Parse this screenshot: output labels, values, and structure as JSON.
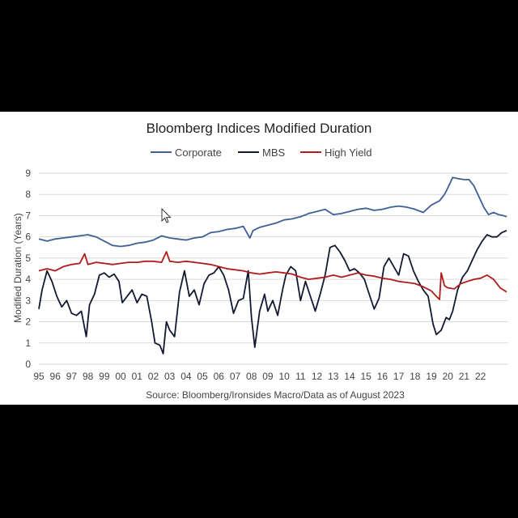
{
  "chart_data": {
    "type": "line",
    "title": "Bloomberg Indices Modified Duration",
    "ylabel": "Modified Duration (Years)",
    "xlabel": "",
    "source": "Source: Bloomberg/Ironsides Macro/Data as of August 2023",
    "ylim": [
      0,
      9
    ],
    "yticks": [
      0,
      1,
      2,
      3,
      4,
      5,
      6,
      7,
      8,
      9
    ],
    "xlim": [
      1995.0,
      2023.7
    ],
    "xtick_labels": [
      "95",
      "96",
      "97",
      "98",
      "99",
      "00",
      "01",
      "02",
      "03",
      "04",
      "05",
      "06",
      "07",
      "08",
      "09",
      "10",
      "11",
      "12",
      "13",
      "14",
      "15",
      "16",
      "17",
      "18",
      "19",
      "20",
      "21",
      "22"
    ],
    "grid": "horizontal",
    "legend_position": "top",
    "series": [
      {
        "name": "Corporate",
        "color": "#3f5f95",
        "points": [
          [
            1995.0,
            5.9
          ],
          [
            1995.5,
            5.8
          ],
          [
            1996.0,
            5.9
          ],
          [
            1996.5,
            5.95
          ],
          [
            1997.0,
            6.0
          ],
          [
            1997.5,
            6.05
          ],
          [
            1998.0,
            6.1
          ],
          [
            1998.5,
            6.0
          ],
          [
            1999.0,
            5.8
          ],
          [
            1999.5,
            5.6
          ],
          [
            2000.0,
            5.55
          ],
          [
            2000.5,
            5.6
          ],
          [
            2001.0,
            5.7
          ],
          [
            2001.5,
            5.75
          ],
          [
            2002.0,
            5.85
          ],
          [
            2002.5,
            6.05
          ],
          [
            2003.0,
            5.95
          ],
          [
            2003.5,
            5.9
          ],
          [
            2004.0,
            5.85
          ],
          [
            2004.5,
            5.95
          ],
          [
            2005.0,
            6.0
          ],
          [
            2005.5,
            6.2
          ],
          [
            2006.0,
            6.25
          ],
          [
            2006.5,
            6.35
          ],
          [
            2007.0,
            6.4
          ],
          [
            2007.5,
            6.5
          ],
          [
            2007.9,
            5.95
          ],
          [
            2008.1,
            6.3
          ],
          [
            2008.5,
            6.45
          ],
          [
            2009.0,
            6.55
          ],
          [
            2009.5,
            6.65
          ],
          [
            2010.0,
            6.8
          ],
          [
            2010.5,
            6.85
          ],
          [
            2011.0,
            6.95
          ],
          [
            2011.5,
            7.1
          ],
          [
            2012.0,
            7.2
          ],
          [
            2012.5,
            7.3
          ],
          [
            2013.0,
            7.05
          ],
          [
            2013.5,
            7.1
          ],
          [
            2014.0,
            7.2
          ],
          [
            2014.5,
            7.3
          ],
          [
            2015.0,
            7.35
          ],
          [
            2015.5,
            7.25
          ],
          [
            2016.0,
            7.3
          ],
          [
            2016.5,
            7.4
          ],
          [
            2017.0,
            7.45
          ],
          [
            2017.5,
            7.4
          ],
          [
            2018.0,
            7.3
          ],
          [
            2018.5,
            7.15
          ],
          [
            2019.0,
            7.5
          ],
          [
            2019.5,
            7.7
          ],
          [
            2019.8,
            8.0
          ],
          [
            2020.0,
            8.3
          ],
          [
            2020.3,
            8.8
          ],
          [
            2020.6,
            8.75
          ],
          [
            2021.0,
            8.7
          ],
          [
            2021.3,
            8.7
          ],
          [
            2021.6,
            8.4
          ],
          [
            2021.9,
            7.9
          ],
          [
            2022.2,
            7.4
          ],
          [
            2022.5,
            7.05
          ],
          [
            2022.8,
            7.15
          ],
          [
            2023.1,
            7.05
          ],
          [
            2023.4,
            7.0
          ],
          [
            2023.6,
            6.95
          ]
        ]
      },
      {
        "name": "MBS",
        "color": "#111a30",
        "points": [
          [
            1995.0,
            2.6
          ],
          [
            1995.2,
            3.5
          ],
          [
            1995.5,
            4.4
          ],
          [
            1995.8,
            3.9
          ],
          [
            1996.1,
            3.2
          ],
          [
            1996.4,
            2.7
          ],
          [
            1996.7,
            3.0
          ],
          [
            1997.0,
            2.4
          ],
          [
            1997.3,
            2.3
          ],
          [
            1997.6,
            2.5
          ],
          [
            1997.9,
            1.3
          ],
          [
            1998.1,
            2.8
          ],
          [
            1998.4,
            3.3
          ],
          [
            1998.7,
            4.2
          ],
          [
            1999.0,
            4.3
          ],
          [
            1999.3,
            4.1
          ],
          [
            1999.6,
            4.25
          ],
          [
            1999.9,
            3.9
          ],
          [
            2000.1,
            2.9
          ],
          [
            2000.4,
            3.2
          ],
          [
            2000.7,
            3.5
          ],
          [
            2001.0,
            2.9
          ],
          [
            2001.3,
            3.3
          ],
          [
            2001.6,
            3.2
          ],
          [
            2001.9,
            2.0
          ],
          [
            2002.1,
            1.0
          ],
          [
            2002.4,
            0.9
          ],
          [
            2002.6,
            0.5
          ],
          [
            2002.8,
            2.0
          ],
          [
            2003.0,
            1.6
          ],
          [
            2003.3,
            1.3
          ],
          [
            2003.6,
            3.4
          ],
          [
            2003.9,
            4.4
          ],
          [
            2004.2,
            3.2
          ],
          [
            2004.5,
            3.5
          ],
          [
            2004.8,
            2.8
          ],
          [
            2005.1,
            3.8
          ],
          [
            2005.4,
            4.2
          ],
          [
            2005.7,
            4.3
          ],
          [
            2006.0,
            4.6
          ],
          [
            2006.3,
            4.2
          ],
          [
            2006.6,
            3.5
          ],
          [
            2006.9,
            2.4
          ],
          [
            2007.2,
            3.0
          ],
          [
            2007.5,
            3.1
          ],
          [
            2007.8,
            4.4
          ],
          [
            2008.0,
            2.2
          ],
          [
            2008.2,
            0.8
          ],
          [
            2008.5,
            2.5
          ],
          [
            2008.8,
            3.3
          ],
          [
            2009.0,
            2.5
          ],
          [
            2009.3,
            3.0
          ],
          [
            2009.6,
            2.3
          ],
          [
            2009.9,
            3.5
          ],
          [
            2010.1,
            4.2
          ],
          [
            2010.4,
            4.6
          ],
          [
            2010.7,
            4.4
          ],
          [
            2011.0,
            3.0
          ],
          [
            2011.3,
            3.9
          ],
          [
            2011.6,
            3.2
          ],
          [
            2011.9,
            2.5
          ],
          [
            2012.2,
            3.3
          ],
          [
            2012.5,
            4.2
          ],
          [
            2012.8,
            5.5
          ],
          [
            2013.1,
            5.6
          ],
          [
            2013.4,
            5.3
          ],
          [
            2013.7,
            4.9
          ],
          [
            2014.0,
            4.4
          ],
          [
            2014.3,
            4.5
          ],
          [
            2014.6,
            4.3
          ],
          [
            2014.9,
            4.0
          ],
          [
            2015.2,
            3.3
          ],
          [
            2015.5,
            2.6
          ],
          [
            2015.8,
            3.1
          ],
          [
            2016.1,
            4.6
          ],
          [
            2016.4,
            5.0
          ],
          [
            2016.7,
            4.6
          ],
          [
            2017.0,
            4.2
          ],
          [
            2017.3,
            5.2
          ],
          [
            2017.6,
            5.1
          ],
          [
            2017.9,
            4.4
          ],
          [
            2018.2,
            3.9
          ],
          [
            2018.5,
            3.5
          ],
          [
            2018.8,
            3.2
          ],
          [
            2019.1,
            1.9
          ],
          [
            2019.3,
            1.4
          ],
          [
            2019.6,
            1.6
          ],
          [
            2019.9,
            2.2
          ],
          [
            2020.1,
            2.1
          ],
          [
            2020.3,
            2.5
          ],
          [
            2020.6,
            3.5
          ],
          [
            2020.9,
            4.1
          ],
          [
            2021.2,
            4.4
          ],
          [
            2021.5,
            4.9
          ],
          [
            2021.8,
            5.4
          ],
          [
            2022.1,
            5.8
          ],
          [
            2022.4,
            6.1
          ],
          [
            2022.7,
            6.0
          ],
          [
            2023.0,
            6.0
          ],
          [
            2023.3,
            6.2
          ],
          [
            2023.6,
            6.3
          ]
        ]
      },
      {
        "name": "High Yield",
        "color": "#b01c1c",
        "points": [
          [
            1995.0,
            4.4
          ],
          [
            1995.5,
            4.5
          ],
          [
            1996.0,
            4.4
          ],
          [
            1996.5,
            4.6
          ],
          [
            1997.0,
            4.7
          ],
          [
            1997.5,
            4.75
          ],
          [
            1997.8,
            5.2
          ],
          [
            1998.0,
            4.7
          ],
          [
            1998.5,
            4.8
          ],
          [
            1999.0,
            4.75
          ],
          [
            1999.5,
            4.7
          ],
          [
            2000.0,
            4.75
          ],
          [
            2000.5,
            4.8
          ],
          [
            2001.0,
            4.8
          ],
          [
            2001.5,
            4.85
          ],
          [
            2002.0,
            4.85
          ],
          [
            2002.5,
            4.8
          ],
          [
            2002.8,
            5.3
          ],
          [
            2003.0,
            4.85
          ],
          [
            2003.5,
            4.8
          ],
          [
            2004.0,
            4.85
          ],
          [
            2004.5,
            4.8
          ],
          [
            2005.0,
            4.75
          ],
          [
            2005.5,
            4.7
          ],
          [
            2006.0,
            4.6
          ],
          [
            2006.5,
            4.5
          ],
          [
            2007.0,
            4.45
          ],
          [
            2007.5,
            4.4
          ],
          [
            2008.0,
            4.3
          ],
          [
            2008.5,
            4.25
          ],
          [
            2009.0,
            4.3
          ],
          [
            2009.5,
            4.35
          ],
          [
            2010.0,
            4.3
          ],
          [
            2010.5,
            4.25
          ],
          [
            2011.0,
            4.1
          ],
          [
            2011.5,
            4.0
          ],
          [
            2012.0,
            4.05
          ],
          [
            2012.5,
            4.1
          ],
          [
            2013.0,
            4.2
          ],
          [
            2013.5,
            4.1
          ],
          [
            2014.0,
            4.2
          ],
          [
            2014.5,
            4.3
          ],
          [
            2015.0,
            4.2
          ],
          [
            2015.5,
            4.15
          ],
          [
            2016.0,
            4.05
          ],
          [
            2016.5,
            4.0
          ],
          [
            2017.0,
            3.9
          ],
          [
            2017.5,
            3.85
          ],
          [
            2018.0,
            3.8
          ],
          [
            2018.5,
            3.65
          ],
          [
            2019.0,
            3.45
          ],
          [
            2019.3,
            3.2
          ],
          [
            2019.5,
            3.05
          ],
          [
            2019.6,
            4.3
          ],
          [
            2019.8,
            3.7
          ],
          [
            2020.0,
            3.6
          ],
          [
            2020.4,
            3.55
          ],
          [
            2020.8,
            3.8
          ],
          [
            2021.2,
            3.9
          ],
          [
            2021.6,
            4.0
          ],
          [
            2022.0,
            4.05
          ],
          [
            2022.4,
            4.2
          ],
          [
            2022.8,
            4.0
          ],
          [
            2023.2,
            3.6
          ],
          [
            2023.6,
            3.4
          ]
        ]
      }
    ]
  }
}
